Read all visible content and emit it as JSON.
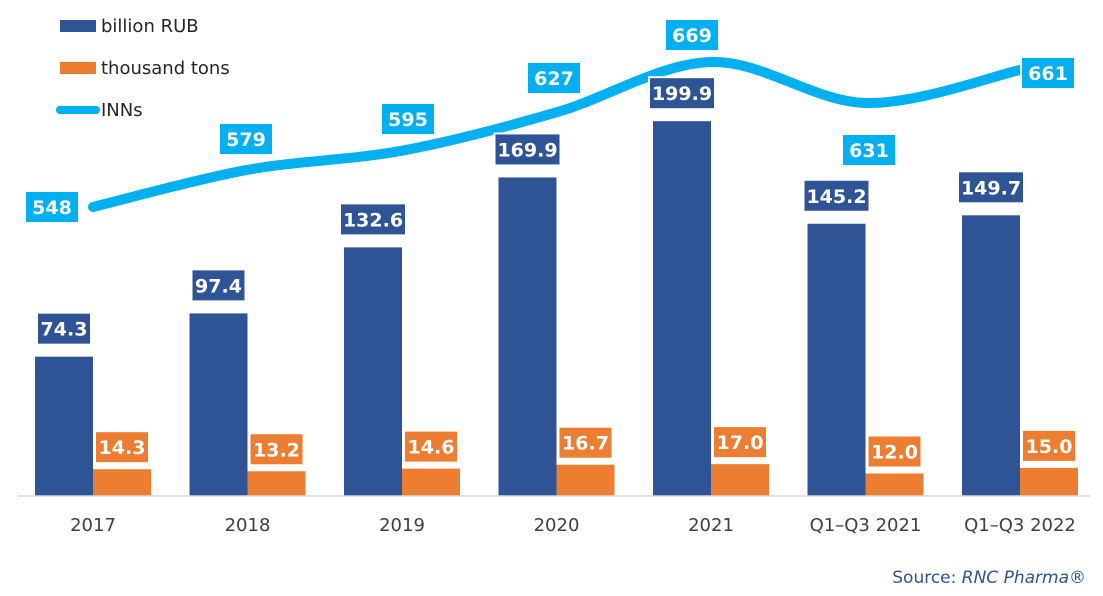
{
  "colors": {
    "rub": "#2f5496",
    "tons": "#ed7d31",
    "inns": "#00b0f0"
  },
  "source": {
    "prefix": "Source: ",
    "name": "RNC Pharma®"
  },
  "chart_data": {
    "type": "bar",
    "categories": [
      "2017",
      "2018",
      "2019",
      "2020",
      "2021",
      "Q1–Q3 2021",
      "Q1–Q3 2022"
    ],
    "series": [
      {
        "name": "billion RUB",
        "type": "bar",
        "values": [
          74.3,
          97.4,
          132.6,
          169.9,
          199.9,
          145.2,
          149.7
        ]
      },
      {
        "name": "thousand tons",
        "type": "bar",
        "values": [
          14.3,
          13.2,
          14.6,
          16.7,
          17.0,
          12.0,
          15.0
        ]
      },
      {
        "name": "INNs",
        "type": "line",
        "values": [
          548,
          579,
          595,
          627,
          669,
          631,
          661
        ]
      }
    ],
    "value_labels": {
      "billion RUB": [
        "74.3",
        "97.4",
        "132.6",
        "169.9",
        "199.9",
        "145.2",
        "149.7"
      ],
      "thousand tons": [
        "14.3",
        "13.2",
        "14.6",
        "16.7",
        "17.0",
        "12.0",
        "15.0"
      ],
      "INNs": [
        "548",
        "579",
        "595",
        "627",
        "669",
        "631",
        "661"
      ]
    },
    "ylim_bars": [
      0,
      275
    ],
    "grid": false,
    "legend_position": "top-left"
  }
}
